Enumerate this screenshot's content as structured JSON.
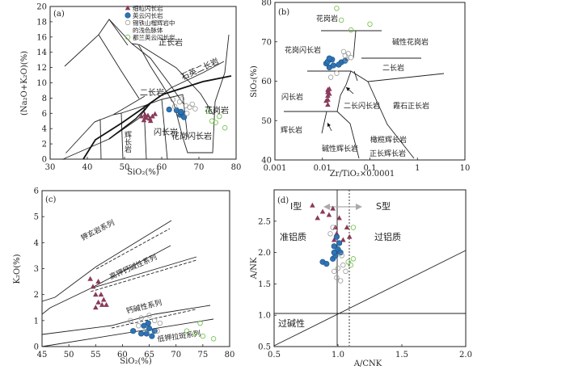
{
  "colors": {
    "triangle": "#8a3a5a",
    "dot": "#2e74b5",
    "dot_edge": "#1a4f80",
    "open_circle": "#9a9a9a",
    "green_circle": "#6dbd45",
    "arrow_gray": "#aaaaaa"
  },
  "symbols": {
    "triangle": "triangle-up-filled",
    "dot": "circle-filled",
    "open": "circle-open-gray",
    "green": "circle-open-green"
  },
  "legend": [
    {
      "label": "细粒闪长岩",
      "symbol": "triangle"
    },
    {
      "label": "英云闪长岩",
      "symbol": "dot"
    },
    {
      "label": "锡铁山榴辉岩中",
      "symbol": "open"
    },
    {
      "label": "的浅色脉体",
      "symbol": "none"
    },
    {
      "label": "都兰英云闪长岩",
      "symbol": "green"
    }
  ],
  "chart_data": [
    {
      "panel": "a",
      "type": "scatter",
      "panel_label": "(a)",
      "xlabel": "SiO₂(%)",
      "ylabel": "(Na₂O+K₂O)(%)",
      "xlim": [
        30,
        80
      ],
      "ylim": [
        0,
        20
      ],
      "xticks": [
        "30",
        "40",
        "50",
        "60",
        "70",
        "80"
      ],
      "yticks": [
        "0",
        "2",
        "4",
        "6",
        "8",
        "10",
        "12",
        "14",
        "16",
        "18",
        "20"
      ],
      "field_labels": [
        "正长岩",
        "二长岩",
        "石英二长岩",
        "辉长岩",
        "闪长岩",
        "花岗闪长岩",
        "花岗岩"
      ],
      "series": [
        {
          "name": "细粒闪长岩",
          "symbol": "triangle",
          "points": [
            [
              54.5,
              5.6
            ],
            [
              55.2,
              5.1
            ],
            [
              55.8,
              5.4
            ],
            [
              56.3,
              5.7
            ],
            [
              57.0,
              5.0
            ],
            [
              57.5,
              5.6
            ],
            [
              58.2,
              5.9
            ],
            [
              56.8,
              5.3
            ],
            [
              55.5,
              5.8
            ]
          ]
        },
        {
          "name": "英云闪长岩",
          "symbol": "dot",
          "points": [
            [
              62.0,
              6.5
            ],
            [
              64.0,
              6.4
            ],
            [
              65.0,
              5.8
            ],
            [
              65.5,
              6.0
            ],
            [
              66.0,
              5.5
            ],
            [
              65.2,
              6.2
            ]
          ]
        },
        {
          "name": "锡铁山榴辉岩中的浅色脉体",
          "symbol": "open",
          "points": [
            [
              63.5,
              6.9
            ],
            [
              66.5,
              7.0
            ],
            [
              67.5,
              6.8
            ],
            [
              68.2,
              7.2
            ],
            [
              64.8,
              7.5
            ],
            [
              66.8,
              6.0
            ],
            [
              69.0,
              6.6
            ],
            [
              63.0,
              7.8
            ],
            [
              65.5,
              7.9
            ]
          ]
        },
        {
          "name": "都兰英云闪长岩",
          "symbol": "green",
          "points": [
            [
              73.5,
              5.0
            ],
            [
              74.5,
              4.8
            ],
            [
              77.0,
              4.1
            ],
            [
              75.5,
              5.6
            ],
            [
              72.5,
              6.3
            ]
          ]
        }
      ]
    },
    {
      "panel": "b",
      "type": "scatter",
      "panel_label": "(b)",
      "xlabel": "Zr/TiO₂×0.0001",
      "ylabel": "SiO₂(%)",
      "xscale": "log",
      "xlim": [
        0.001,
        10
      ],
      "ylim": [
        40,
        80
      ],
      "xticks": [
        "0.001",
        "0.01",
        "0.1",
        "1",
        "10"
      ],
      "yticks": [
        "40",
        "50",
        "60",
        "70",
        "80"
      ],
      "field_labels": [
        "花岗岩",
        "碱性花岗岩",
        "花岗闪长岩",
        "二长岩",
        "闪长岩",
        "二长闪长岩",
        "霞石正长岩",
        "辉长岩",
        "碱性辉长岩",
        "橄榄辉长岩",
        "正长辉长岩"
      ],
      "series": [
        {
          "name": "细粒闪长岩",
          "symbol": "triangle",
          "points": [
            [
              0.013,
              54.0
            ],
            [
              0.013,
              55.3
            ],
            [
              0.013,
              56.3
            ],
            [
              0.013,
              57.2
            ],
            [
              0.014,
              58.0
            ],
            [
              0.012,
              55.0
            ],
            [
              0.014,
              56.8
            ],
            [
              0.013,
              57.8
            ]
          ]
        },
        {
          "name": "英云闪长岩",
          "symbol": "dot",
          "points": [
            [
              0.012,
              64.5
            ],
            [
              0.013,
              65.0
            ],
            [
              0.014,
              63.5
            ],
            [
              0.016,
              65.5
            ],
            [
              0.017,
              64.0
            ],
            [
              0.025,
              64.8
            ],
            [
              0.03,
              65.2
            ],
            [
              0.022,
              64.2
            ],
            [
              0.014,
              65.8
            ]
          ]
        },
        {
          "name": "锡铁山榴辉岩中的浅色脉体",
          "symbol": "open",
          "points": [
            [
              0.03,
              66.5
            ],
            [
              0.035,
              67.0
            ],
            [
              0.04,
              66.0
            ],
            [
              0.032,
              65.5
            ],
            [
              0.028,
              67.5
            ],
            [
              0.015,
              61.0
            ],
            [
              0.02,
              62.0
            ]
          ]
        },
        {
          "name": "都兰英云闪长岩",
          "symbol": "green",
          "points": [
            [
              0.02,
              78.5
            ],
            [
              0.04,
              73.0
            ],
            [
              0.1,
              74.5
            ],
            [
              0.025,
              75.5
            ]
          ]
        }
      ]
    },
    {
      "panel": "c",
      "type": "scatter",
      "panel_label": "(c)",
      "xlabel": "SiO₂(%)",
      "ylabel": "K₂O(%)",
      "xlim": [
        45,
        80
      ],
      "ylim": [
        0,
        6
      ],
      "xticks": [
        "45",
        "50",
        "55",
        "60",
        "65",
        "70",
        "75",
        "80"
      ],
      "yticks": [
        "0",
        "1",
        "2",
        "3",
        "4",
        "5",
        "6"
      ],
      "field_labels": [
        "钾玄岩系列",
        "高钾钙碱性系列",
        "钙碱性系列",
        "低钾拉斑系列"
      ],
      "series": [
        {
          "name": "细粒闪长岩",
          "symbol": "triangle",
          "points": [
            [
              54.0,
              2.6
            ],
            [
              54.5,
              2.3
            ],
            [
              55.5,
              2.5
            ],
            [
              55.0,
              2.0
            ],
            [
              56.0,
              2.0
            ],
            [
              55.5,
              1.7
            ],
            [
              56.5,
              1.8
            ],
            [
              57.0,
              1.6
            ],
            [
              55.0,
              1.5
            ],
            [
              56.2,
              1.6
            ]
          ]
        },
        {
          "name": "英云闪长岩",
          "symbol": "dot",
          "points": [
            [
              62.0,
              0.6
            ],
            [
              64.0,
              0.8
            ],
            [
              64.5,
              0.5
            ],
            [
              65.0,
              0.7
            ],
            [
              65.5,
              0.4
            ],
            [
              66.0,
              0.6
            ],
            [
              64.8,
              0.9
            ],
            [
              63.5,
              0.5
            ]
          ]
        },
        {
          "name": "锡铁山榴辉岩中的浅色脉体",
          "symbol": "open",
          "points": [
            [
              61.5,
              1.0
            ],
            [
              63.5,
              1.1
            ],
            [
              66.0,
              1.0
            ],
            [
              67.0,
              0.9
            ],
            [
              65.0,
              1.2
            ],
            [
              66.5,
              0.6
            ],
            [
              63.0,
              0.8
            ]
          ]
        },
        {
          "name": "都兰英云闪长岩",
          "symbol": "green",
          "points": [
            [
              72.0,
              0.6
            ],
            [
              73.5,
              0.5
            ],
            [
              74.5,
              0.9
            ],
            [
              77.0,
              0.3
            ],
            [
              75.0,
              0.4
            ]
          ]
        }
      ]
    },
    {
      "panel": "d",
      "type": "scatter",
      "panel_label": "(d)",
      "xlabel": "A/CNK",
      "ylabel": "A/NK",
      "xlim": [
        0.5,
        2.0
      ],
      "ylim": [
        0.5,
        3.0
      ],
      "xticks": [
        "0.5",
        "1.0",
        "1.5",
        "2.0"
      ],
      "yticks": [
        "0.5",
        "1.0",
        "1.5",
        "2.0",
        "2.5"
      ],
      "vlines": [
        1.0,
        1.1
      ],
      "field_labels": [
        "I型",
        "S型",
        "准铝质",
        "过铝质",
        "过碱性"
      ],
      "series": [
        {
          "name": "细粒闪长岩",
          "symbol": "triangle",
          "points": [
            [
              0.8,
              2.75
            ],
            [
              0.84,
              2.55
            ],
            [
              0.88,
              2.65
            ],
            [
              0.93,
              2.6
            ],
            [
              0.96,
              2.7
            ],
            [
              0.98,
              2.4
            ],
            [
              1.01,
              2.55
            ],
            [
              1.07,
              2.4
            ],
            [
              0.97,
              2.2
            ],
            [
              0.99,
              2.3
            ],
            [
              1.04,
              2.2
            ],
            [
              1.09,
              2.25
            ]
          ]
        },
        {
          "name": "英云闪长岩",
          "symbol": "dot",
          "points": [
            [
              0.88,
              1.85
            ],
            [
              0.91,
              1.82
            ],
            [
              0.96,
              1.9
            ],
            [
              0.98,
              1.95
            ],
            [
              0.97,
              2.1
            ],
            [
              0.99,
              2.25
            ],
            [
              1.0,
              2.05
            ],
            [
              1.02,
              2.0
            ],
            [
              0.97,
              2.0
            ],
            [
              1.01,
              2.15
            ]
          ]
        },
        {
          "name": "锡铁山榴辉岩中的浅色脉体",
          "symbol": "open",
          "points": [
            [
              0.94,
              2.3
            ],
            [
              0.97,
              1.7
            ],
            [
              0.99,
              1.6
            ],
            [
              1.02,
              1.55
            ],
            [
              1.04,
              1.8
            ],
            [
              1.06,
              1.7
            ],
            [
              1.03,
              1.95
            ],
            [
              0.96,
              2.4
            ],
            [
              1.0,
              1.75
            ]
          ]
        },
        {
          "name": "都兰英云闪长岩",
          "symbol": "green",
          "points": [
            [
              1.08,
              1.85
            ],
            [
              1.1,
              1.8
            ],
            [
              1.12,
              1.9
            ],
            [
              1.12,
              2.4
            ]
          ]
        }
      ]
    }
  ]
}
